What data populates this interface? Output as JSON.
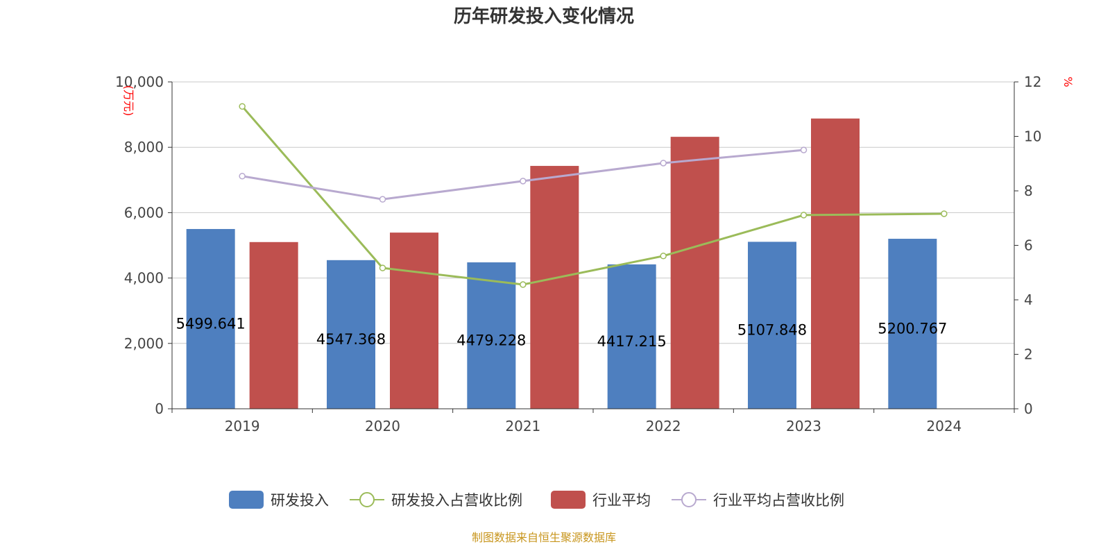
{
  "chart_data": {
    "type": "bar",
    "title": "历年研发投入变化情况",
    "categories": [
      "2019",
      "2020",
      "2021",
      "2022",
      "2023",
      "2024"
    ],
    "y_left": {
      "label": "(万元)",
      "range": [
        0,
        10000
      ],
      "ticks": [
        "0",
        "2,000",
        "4,000",
        "6,000",
        "8,000",
        "10,000"
      ]
    },
    "y_right": {
      "label": "%",
      "range": [
        0,
        12
      ],
      "ticks": [
        "0",
        "2",
        "4",
        "6",
        "8",
        "10",
        "12"
      ]
    },
    "grid": true,
    "legend_position": "bottom",
    "series": [
      {
        "name": "研发投入",
        "type": "bar",
        "axis": "left",
        "color": "#4e7fbf",
        "values": [
          5499.641,
          4547.368,
          4479.228,
          4417.215,
          5107.848,
          5200.767
        ],
        "labels": [
          "5499.641",
          "4547.368",
          "4479.228",
          "4417.215",
          "5107.848",
          "5200.767"
        ]
      },
      {
        "name": "研发投入占营收比例",
        "type": "line",
        "axis": "right",
        "color": "#9bbb59",
        "values": [
          11.1,
          5.17,
          4.56,
          5.61,
          7.11,
          7.16
        ]
      },
      {
        "name": "行业平均",
        "type": "bar",
        "axis": "left",
        "color": "#c0504d",
        "values": [
          5100,
          5390,
          7430,
          8320,
          8880,
          null
        ]
      },
      {
        "name": "行业平均占营收比例",
        "type": "line",
        "axis": "right",
        "color": "#b8a9cf",
        "values": [
          8.54,
          7.69,
          8.36,
          9.02,
          9.5,
          null
        ]
      }
    ]
  },
  "source": "制图数据来自恒生聚源数据库"
}
